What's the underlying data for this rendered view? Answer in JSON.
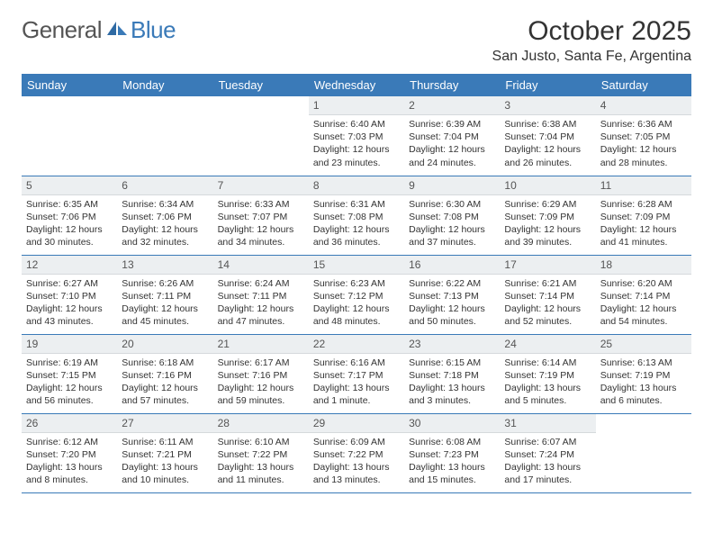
{
  "logo": {
    "part1": "General",
    "part2": "Blue"
  },
  "title": "October 2025",
  "location": "San Justo, Santa Fe, Argentina",
  "colors": {
    "header_bg": "#3a7ab8",
    "header_text": "#ffffff",
    "daynum_bg": "#eceff1",
    "row_border": "#3a7ab8",
    "logo_gray": "#555555",
    "logo_blue": "#3a7ab8",
    "page_bg": "#ffffff"
  },
  "weekdays": [
    "Sunday",
    "Monday",
    "Tuesday",
    "Wednesday",
    "Thursday",
    "Friday",
    "Saturday"
  ],
  "weeks": [
    [
      null,
      null,
      null,
      {
        "n": "1",
        "sr": "Sunrise: 6:40 AM",
        "ss": "Sunset: 7:03 PM",
        "dl1": "Daylight: 12 hours",
        "dl2": "and 23 minutes."
      },
      {
        "n": "2",
        "sr": "Sunrise: 6:39 AM",
        "ss": "Sunset: 7:04 PM",
        "dl1": "Daylight: 12 hours",
        "dl2": "and 24 minutes."
      },
      {
        "n": "3",
        "sr": "Sunrise: 6:38 AM",
        "ss": "Sunset: 7:04 PM",
        "dl1": "Daylight: 12 hours",
        "dl2": "and 26 minutes."
      },
      {
        "n": "4",
        "sr": "Sunrise: 6:36 AM",
        "ss": "Sunset: 7:05 PM",
        "dl1": "Daylight: 12 hours",
        "dl2": "and 28 minutes."
      }
    ],
    [
      {
        "n": "5",
        "sr": "Sunrise: 6:35 AM",
        "ss": "Sunset: 7:06 PM",
        "dl1": "Daylight: 12 hours",
        "dl2": "and 30 minutes."
      },
      {
        "n": "6",
        "sr": "Sunrise: 6:34 AM",
        "ss": "Sunset: 7:06 PM",
        "dl1": "Daylight: 12 hours",
        "dl2": "and 32 minutes."
      },
      {
        "n": "7",
        "sr": "Sunrise: 6:33 AM",
        "ss": "Sunset: 7:07 PM",
        "dl1": "Daylight: 12 hours",
        "dl2": "and 34 minutes."
      },
      {
        "n": "8",
        "sr": "Sunrise: 6:31 AM",
        "ss": "Sunset: 7:08 PM",
        "dl1": "Daylight: 12 hours",
        "dl2": "and 36 minutes."
      },
      {
        "n": "9",
        "sr": "Sunrise: 6:30 AM",
        "ss": "Sunset: 7:08 PM",
        "dl1": "Daylight: 12 hours",
        "dl2": "and 37 minutes."
      },
      {
        "n": "10",
        "sr": "Sunrise: 6:29 AM",
        "ss": "Sunset: 7:09 PM",
        "dl1": "Daylight: 12 hours",
        "dl2": "and 39 minutes."
      },
      {
        "n": "11",
        "sr": "Sunrise: 6:28 AM",
        "ss": "Sunset: 7:09 PM",
        "dl1": "Daylight: 12 hours",
        "dl2": "and 41 minutes."
      }
    ],
    [
      {
        "n": "12",
        "sr": "Sunrise: 6:27 AM",
        "ss": "Sunset: 7:10 PM",
        "dl1": "Daylight: 12 hours",
        "dl2": "and 43 minutes."
      },
      {
        "n": "13",
        "sr": "Sunrise: 6:26 AM",
        "ss": "Sunset: 7:11 PM",
        "dl1": "Daylight: 12 hours",
        "dl2": "and 45 minutes."
      },
      {
        "n": "14",
        "sr": "Sunrise: 6:24 AM",
        "ss": "Sunset: 7:11 PM",
        "dl1": "Daylight: 12 hours",
        "dl2": "and 47 minutes."
      },
      {
        "n": "15",
        "sr": "Sunrise: 6:23 AM",
        "ss": "Sunset: 7:12 PM",
        "dl1": "Daylight: 12 hours",
        "dl2": "and 48 minutes."
      },
      {
        "n": "16",
        "sr": "Sunrise: 6:22 AM",
        "ss": "Sunset: 7:13 PM",
        "dl1": "Daylight: 12 hours",
        "dl2": "and 50 minutes."
      },
      {
        "n": "17",
        "sr": "Sunrise: 6:21 AM",
        "ss": "Sunset: 7:14 PM",
        "dl1": "Daylight: 12 hours",
        "dl2": "and 52 minutes."
      },
      {
        "n": "18",
        "sr": "Sunrise: 6:20 AM",
        "ss": "Sunset: 7:14 PM",
        "dl1": "Daylight: 12 hours",
        "dl2": "and 54 minutes."
      }
    ],
    [
      {
        "n": "19",
        "sr": "Sunrise: 6:19 AM",
        "ss": "Sunset: 7:15 PM",
        "dl1": "Daylight: 12 hours",
        "dl2": "and 56 minutes."
      },
      {
        "n": "20",
        "sr": "Sunrise: 6:18 AM",
        "ss": "Sunset: 7:16 PM",
        "dl1": "Daylight: 12 hours",
        "dl2": "and 57 minutes."
      },
      {
        "n": "21",
        "sr": "Sunrise: 6:17 AM",
        "ss": "Sunset: 7:16 PM",
        "dl1": "Daylight: 12 hours",
        "dl2": "and 59 minutes."
      },
      {
        "n": "22",
        "sr": "Sunrise: 6:16 AM",
        "ss": "Sunset: 7:17 PM",
        "dl1": "Daylight: 13 hours",
        "dl2": "and 1 minute."
      },
      {
        "n": "23",
        "sr": "Sunrise: 6:15 AM",
        "ss": "Sunset: 7:18 PM",
        "dl1": "Daylight: 13 hours",
        "dl2": "and 3 minutes."
      },
      {
        "n": "24",
        "sr": "Sunrise: 6:14 AM",
        "ss": "Sunset: 7:19 PM",
        "dl1": "Daylight: 13 hours",
        "dl2": "and 5 minutes."
      },
      {
        "n": "25",
        "sr": "Sunrise: 6:13 AM",
        "ss": "Sunset: 7:19 PM",
        "dl1": "Daylight: 13 hours",
        "dl2": "and 6 minutes."
      }
    ],
    [
      {
        "n": "26",
        "sr": "Sunrise: 6:12 AM",
        "ss": "Sunset: 7:20 PM",
        "dl1": "Daylight: 13 hours",
        "dl2": "and 8 minutes."
      },
      {
        "n": "27",
        "sr": "Sunrise: 6:11 AM",
        "ss": "Sunset: 7:21 PM",
        "dl1": "Daylight: 13 hours",
        "dl2": "and 10 minutes."
      },
      {
        "n": "28",
        "sr": "Sunrise: 6:10 AM",
        "ss": "Sunset: 7:22 PM",
        "dl1": "Daylight: 13 hours",
        "dl2": "and 11 minutes."
      },
      {
        "n": "29",
        "sr": "Sunrise: 6:09 AM",
        "ss": "Sunset: 7:22 PM",
        "dl1": "Daylight: 13 hours",
        "dl2": "and 13 minutes."
      },
      {
        "n": "30",
        "sr": "Sunrise: 6:08 AM",
        "ss": "Sunset: 7:23 PM",
        "dl1": "Daylight: 13 hours",
        "dl2": "and 15 minutes."
      },
      {
        "n": "31",
        "sr": "Sunrise: 6:07 AM",
        "ss": "Sunset: 7:24 PM",
        "dl1": "Daylight: 13 hours",
        "dl2": "and 17 minutes."
      },
      null
    ]
  ]
}
